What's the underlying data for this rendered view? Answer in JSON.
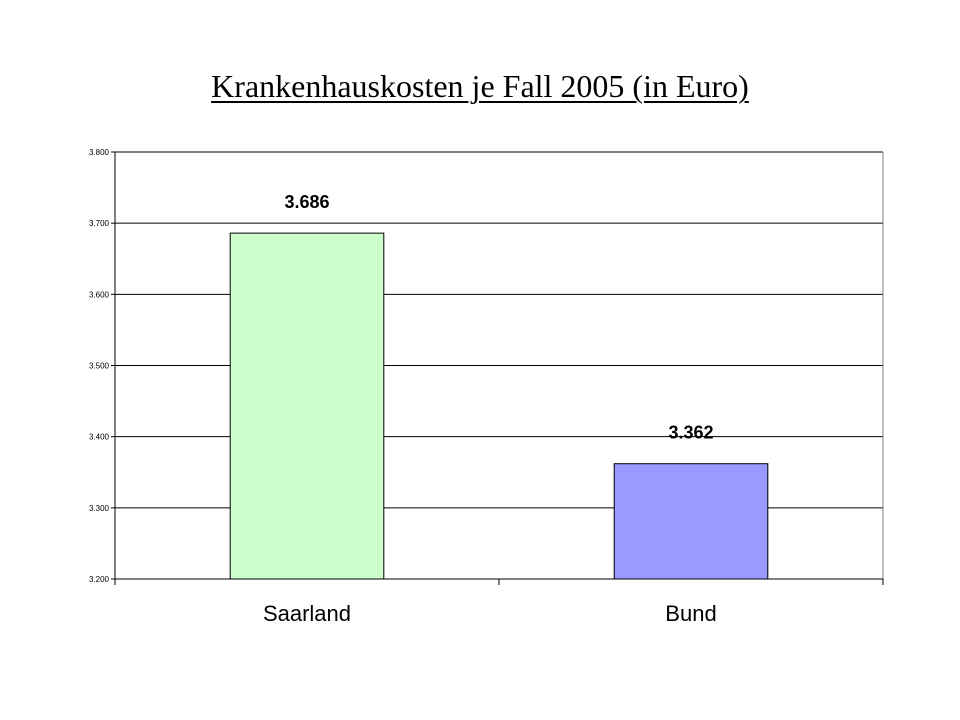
{
  "chart_data": {
    "type": "bar",
    "title": "Krankenhauskosten je Fall 2005 (in Euro)",
    "xlabel": "",
    "ylabel": "",
    "categories": [
      "Saarland",
      "Bund"
    ],
    "values": [
      3686,
      3362
    ],
    "data_labels": [
      "3.686",
      "3.362"
    ],
    "ylim": [
      3200,
      3800
    ],
    "yticks": [
      3200,
      3300,
      3400,
      3500,
      3600,
      3700,
      3800
    ],
    "ytick_labels": [
      "3.200",
      "3.300",
      "3.400",
      "3.500",
      "3.600",
      "3.700",
      "3.800"
    ],
    "grid": true,
    "legend": "none",
    "colors": [
      "#ccffcc",
      "#9999ff"
    ]
  }
}
